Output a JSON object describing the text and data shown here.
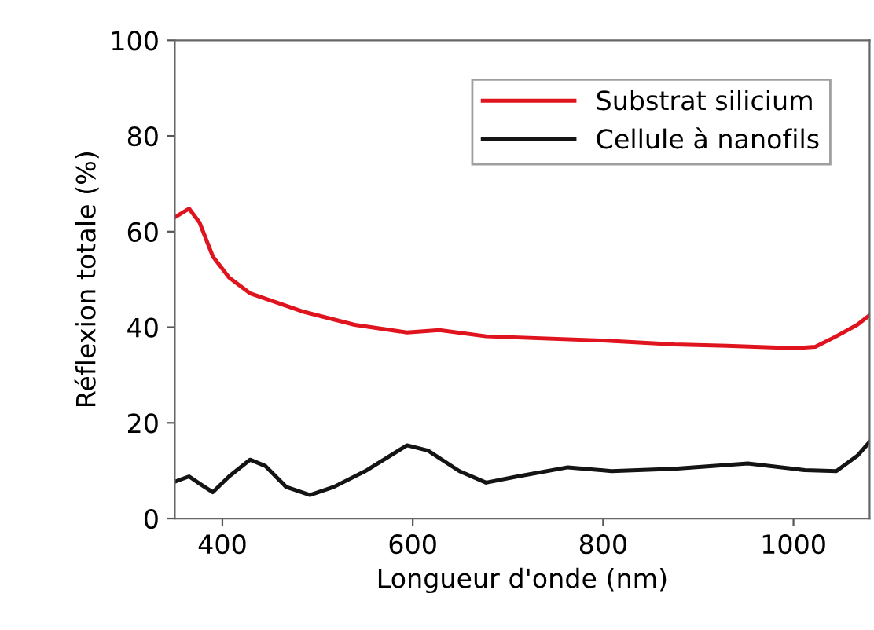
{
  "chart_data": {
    "type": "line",
    "xlabel": "Longueur d'onde (nm)",
    "ylabel": "Réflexion totale (%)",
    "xlim": [
      350,
      1080
    ],
    "xticks": [
      400,
      600,
      800,
      1000
    ],
    "ylim": [
      0,
      100
    ],
    "yticks": [
      0,
      20,
      40,
      60,
      80,
      100
    ],
    "grid": false,
    "legend": "top right",
    "marker": "none",
    "line_style": "solid",
    "series": [
      {
        "name": "Substrat silicium",
        "color": "#e0141e",
        "x": [
          350,
          365,
          376,
          390,
          407,
          429,
          484,
          539,
          594,
          628,
          677,
          800,
          875,
          930,
          1000,
          1023,
          1045,
          1067,
          1080
        ],
        "values": [
          63,
          64.8,
          61.9,
          54.8,
          50.4,
          47.1,
          43.3,
          40.5,
          38.9,
          39.4,
          38.1,
          37.2,
          36.4,
          36.1,
          35.6,
          35.9,
          38.1,
          40.5,
          42.5
        ]
      },
      {
        "name": "Cellule à nanofils",
        "color": "#141414",
        "x": [
          350,
          365,
          376,
          390,
          407,
          429,
          445,
          467,
          492,
          517,
          550,
          594,
          616,
          649,
          677,
          710,
          763,
          809,
          875,
          952,
          1012,
          1045,
          1067,
          1080
        ],
        "values": [
          7.7,
          8.8,
          7.3,
          5.5,
          8.8,
          12.3,
          11,
          6.6,
          4.9,
          6.6,
          9.9,
          15.3,
          14.2,
          9.9,
          7.5,
          8.8,
          10.7,
          9.9,
          10.4,
          11.5,
          10.1,
          9.9,
          13.1,
          16
        ]
      }
    ]
  }
}
